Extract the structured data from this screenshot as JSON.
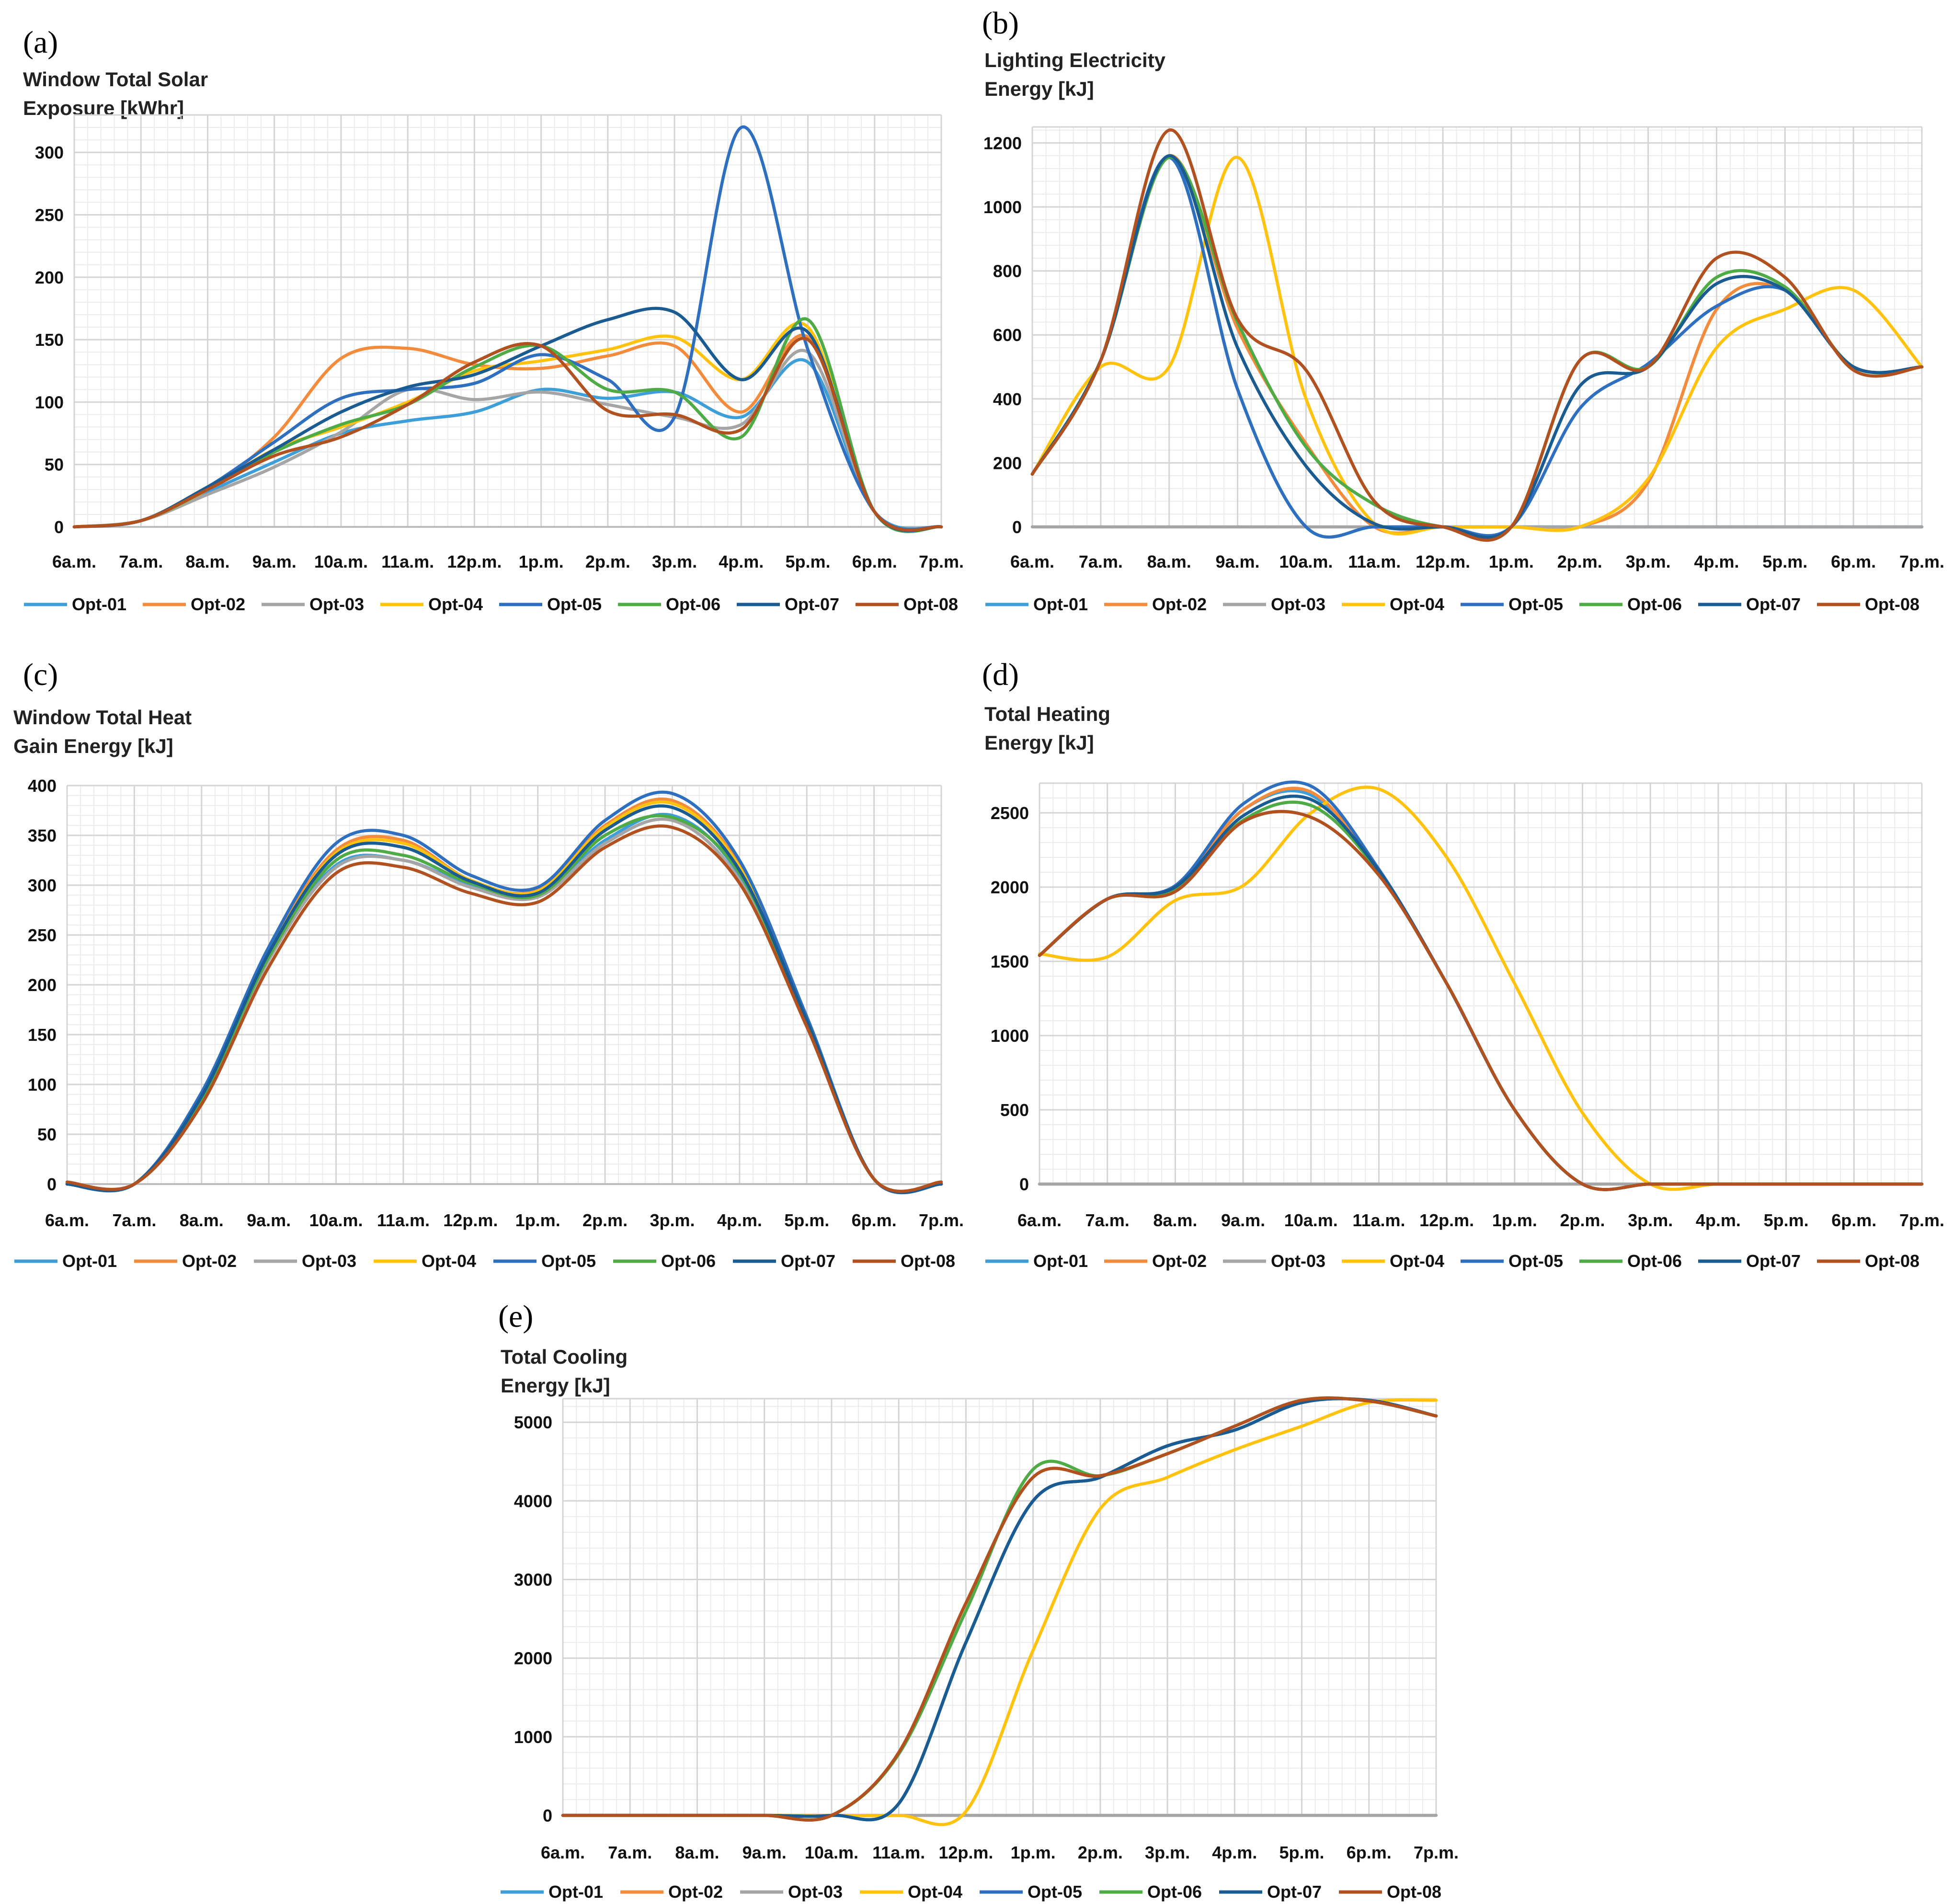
{
  "legend": {
    "colors": {
      "Opt-01": "#3d9ed8",
      "Opt-02": "#f28b3c",
      "Opt-03": "#a5a5a5",
      "Opt-04": "#ffc20e",
      "Opt-05": "#2e6fc0",
      "Opt-06": "#4eab45",
      "Opt-07": "#1a5c91",
      "Opt-08": "#b0511f"
    }
  },
  "chart_data": [
    {
      "id": "a",
      "type": "line",
      "panel_label": "(a)",
      "title_lines": [
        "Window Total Solar",
        "Exposure [kWhr]"
      ],
      "xlabel": "",
      "ylabel": "",
      "categories": [
        "6a.m.",
        "7a.m.",
        "8a.m.",
        "9a.m.",
        "10a.m.",
        "11a.m.",
        "12p.m.",
        "1p.m.",
        "2p.m.",
        "3p.m.",
        "4p.m.",
        "5p.m.",
        "6p.m.",
        "7p.m."
      ],
      "ylim": [
        0,
        330
      ],
      "yticks": [
        0,
        50,
        100,
        150,
        200,
        250,
        300
      ],
      "grid": true,
      "legend_position": "bottom",
      "series": [
        {
          "name": "Opt-01",
          "values": [
            0,
            5,
            28,
            52,
            75,
            85,
            92,
            110,
            103,
            108,
            88,
            132,
            12,
            0
          ]
        },
        {
          "name": "Opt-02",
          "values": [
            0,
            5,
            30,
            72,
            135,
            143,
            130,
            127,
            137,
            145,
            92,
            152,
            12,
            0
          ]
        },
        {
          "name": "Opt-03",
          "values": [
            0,
            5,
            26,
            48,
            76,
            110,
            102,
            108,
            98,
            88,
            82,
            140,
            12,
            0
          ]
        },
        {
          "name": "Opt-04",
          "values": [
            0,
            5,
            30,
            62,
            80,
            100,
            125,
            133,
            142,
            152,
            118,
            160,
            12,
            0
          ]
        },
        {
          "name": "Opt-05",
          "values": [
            0,
            5,
            32,
            68,
            103,
            110,
            115,
            138,
            118,
            88,
            320,
            142,
            12,
            0
          ]
        },
        {
          "name": "Opt-06",
          "values": [
            0,
            5,
            30,
            60,
            82,
            98,
            128,
            145,
            110,
            108,
            72,
            166,
            12,
            0
          ]
        },
        {
          "name": "Opt-07",
          "values": [
            0,
            5,
            32,
            62,
            92,
            112,
            122,
            145,
            166,
            172,
            118,
            156,
            12,
            0
          ]
        },
        {
          "name": "Opt-08",
          "values": [
            0,
            5,
            30,
            57,
            72,
            98,
            132,
            145,
            93,
            90,
            78,
            150,
            12,
            0
          ]
        }
      ]
    },
    {
      "id": "b",
      "type": "line",
      "panel_label": "(b)",
      "title_lines": [
        "Lighting Electricity",
        "Energy [kJ]"
      ],
      "xlabel": "",
      "ylabel": "",
      "categories": [
        "6a.m.",
        "7a.m.",
        "8a.m.",
        "9a.m.",
        "10a.m.",
        "11a.m.",
        "12p.m.",
        "1p.m.",
        "2p.m.",
        "3p.m.",
        "4p.m.",
        "5p.m.",
        "6p.m.",
        "7p.m."
      ],
      "ylim": [
        0,
        1250
      ],
      "yticks": [
        0,
        200,
        400,
        600,
        800,
        1000,
        1200
      ],
      "grid": true,
      "legend_position": "bottom",
      "series": [
        {
          "name": "Opt-01",
          "values": [
            165,
            520,
            1155,
            430,
            0,
            0,
            0,
            0,
            0,
            0,
            0,
            0,
            0,
            0
          ]
        },
        {
          "name": "Opt-02",
          "values": [
            165,
            520,
            1160,
            620,
            260,
            0,
            0,
            0,
            0,
            140,
            680,
            740,
            500,
            500
          ]
        },
        {
          "name": "Opt-03",
          "values": [
            0,
            0,
            0,
            0,
            0,
            0,
            0,
            0,
            0,
            0,
            0,
            0,
            0,
            0
          ]
        },
        {
          "name": "Opt-04",
          "values": [
            165,
            500,
            500,
            1155,
            400,
            10,
            0,
            0,
            0,
            150,
            560,
            680,
            740,
            500
          ]
        },
        {
          "name": "Opt-05",
          "values": [
            165,
            520,
            1155,
            430,
            0,
            0,
            0,
            0,
            370,
            510,
            690,
            740,
            500,
            500
          ]
        },
        {
          "name": "Opt-06",
          "values": [
            165,
            520,
            1155,
            640,
            250,
            70,
            0,
            0,
            520,
            500,
            780,
            750,
            500,
            500
          ]
        },
        {
          "name": "Opt-07",
          "values": [
            165,
            520,
            1160,
            560,
            190,
            10,
            0,
            0,
            440,
            500,
            760,
            740,
            500,
            500
          ]
        },
        {
          "name": "Opt-08",
          "values": [
            165,
            520,
            1240,
            650,
            490,
            80,
            0,
            0,
            520,
            500,
            840,
            780,
            490,
            500
          ]
        }
      ]
    },
    {
      "id": "c",
      "type": "line",
      "panel_label": "(c)",
      "title_lines": [
        "Window Total Heat",
        "Gain Energy [kJ]"
      ],
      "xlabel": "",
      "ylabel": "",
      "categories": [
        "6a.m.",
        "7a.m.",
        "8a.m.",
        "9a.m.",
        "10a.m.",
        "11a.m.",
        "12p.m.",
        "1p.m.",
        "2p.m.",
        "3p.m.",
        "4p.m.",
        "5p.m.",
        "6p.m.",
        "7p.m."
      ],
      "ylim": [
        0,
        400
      ],
      "yticks": [
        0,
        50,
        100,
        150,
        200,
        250,
        300,
        350,
        400
      ],
      "grid": true,
      "legend_position": "bottom",
      "series": [
        {
          "name": "Opt-01",
          "values": [
            0,
            0,
            85,
            225,
            320,
            325,
            300,
            290,
            345,
            370,
            310,
            160,
            5,
            0
          ]
        },
        {
          "name": "Opt-02",
          "values": [
            0,
            0,
            90,
            235,
            335,
            345,
            305,
            295,
            360,
            385,
            320,
            165,
            5,
            0
          ]
        },
        {
          "name": "Opt-03",
          "values": [
            0,
            0,
            85,
            225,
            318,
            325,
            298,
            288,
            342,
            365,
            305,
            160,
            5,
            0
          ]
        },
        {
          "name": "Opt-04",
          "values": [
            0,
            0,
            90,
            232,
            332,
            342,
            305,
            294,
            358,
            382,
            318,
            165,
            5,
            0
          ]
        },
        {
          "name": "Opt-05",
          "values": [
            0,
            0,
            92,
            238,
            342,
            350,
            310,
            298,
            365,
            392,
            325,
            168,
            5,
            0
          ]
        },
        {
          "name": "Opt-06",
          "values": [
            0,
            0,
            86,
            228,
            325,
            330,
            302,
            290,
            350,
            368,
            312,
            162,
            5,
            0
          ]
        },
        {
          "name": "Opt-07",
          "values": [
            0,
            0,
            88,
            232,
            330,
            338,
            304,
            292,
            355,
            378,
            315,
            164,
            5,
            0
          ]
        },
        {
          "name": "Opt-08",
          "values": [
            2,
            0,
            80,
            218,
            312,
            318,
            292,
            283,
            338,
            358,
            302,
            158,
            5,
            2
          ]
        }
      ]
    },
    {
      "id": "d",
      "type": "line",
      "panel_label": "(d)",
      "title_lines": [
        "Total Heating",
        "Energy [kJ]"
      ],
      "xlabel": "",
      "ylabel": "",
      "categories": [
        "6a.m.",
        "7a.m.",
        "8a.m.",
        "9a.m.",
        "10a.m.",
        "11a.m.",
        "12p.m.",
        "1p.m.",
        "2p.m.",
        "3p.m.",
        "4p.m.",
        "5p.m.",
        "6p.m.",
        "7p.m."
      ],
      "ylim": [
        0,
        2700
      ],
      "yticks": [
        0,
        500,
        1000,
        1500,
        2000,
        2500
      ],
      "grid": true,
      "legend_position": "bottom",
      "series": [
        {
          "name": "Opt-01",
          "values": [
            1540,
            1920,
            2000,
            2520,
            2620,
            2100,
            1350,
            500,
            0,
            0,
            0,
            0,
            0,
            0
          ]
        },
        {
          "name": "Opt-02",
          "values": [
            1540,
            1920,
            2000,
            2520,
            2640,
            2100,
            1350,
            500,
            0,
            0,
            0,
            0,
            0,
            0
          ]
        },
        {
          "name": "Opt-03",
          "values": [
            0,
            0,
            0,
            0,
            0,
            0,
            0,
            0,
            0,
            0,
            0,
            0,
            0,
            0
          ]
        },
        {
          "name": "Opt-04",
          "values": [
            1550,
            1530,
            1910,
            2010,
            2500,
            2660,
            2200,
            1350,
            480,
            0,
            0,
            0,
            0,
            0
          ]
        },
        {
          "name": "Opt-05",
          "values": [
            1540,
            1920,
            2010,
            2560,
            2680,
            2120,
            1350,
            500,
            0,
            0,
            0,
            0,
            0,
            0
          ]
        },
        {
          "name": "Opt-06",
          "values": [
            1540,
            1920,
            1980,
            2450,
            2550,
            2100,
            1350,
            500,
            0,
            0,
            0,
            0,
            0,
            0
          ]
        },
        {
          "name": "Opt-07",
          "values": [
            1540,
            1920,
            2000,
            2480,
            2590,
            2110,
            1350,
            500,
            0,
            0,
            0,
            0,
            0,
            0
          ]
        },
        {
          "name": "Opt-08",
          "values": [
            1540,
            1920,
            1970,
            2440,
            2470,
            2080,
            1350,
            500,
            0,
            0,
            0,
            0,
            0,
            0
          ]
        }
      ]
    },
    {
      "id": "e",
      "type": "line",
      "panel_label": "(e)",
      "title_lines": [
        "Total Cooling",
        "Energy [kJ]"
      ],
      "xlabel": "",
      "ylabel": "",
      "categories": [
        "6a.m.",
        "7a.m.",
        "8a.m.",
        "9a.m.",
        "10a.m.",
        "11a.m.",
        "12p.m.",
        "1p.m.",
        "2p.m.",
        "3p.m.",
        "4p.m.",
        "5p.m.",
        "6p.m.",
        "7p.m."
      ],
      "ylim": [
        0,
        5300
      ],
      "yticks": [
        0,
        1000,
        2000,
        3000,
        4000,
        5000
      ],
      "grid": true,
      "legend_position": "bottom",
      "series": [
        {
          "name": "Opt-01",
          "values": [
            0,
            0,
            0,
            0,
            0,
            150,
            2200,
            4000,
            4300,
            4700,
            4900,
            5250,
            5280,
            5080
          ]
        },
        {
          "name": "Opt-02",
          "values": [
            0,
            0,
            0,
            0,
            0,
            800,
            2700,
            4300,
            4320,
            4600,
            4950,
            5280,
            5270,
            5080
          ]
        },
        {
          "name": "Opt-03",
          "values": [
            0,
            0,
            0,
            0,
            0,
            0,
            0,
            0,
            0,
            0,
            0,
            0,
            0,
            0
          ]
        },
        {
          "name": "Opt-04",
          "values": [
            0,
            0,
            0,
            0,
            0,
            0,
            50,
            2100,
            3900,
            4300,
            4650,
            4950,
            5250,
            5280
          ]
        },
        {
          "name": "Opt-05",
          "values": [
            0,
            0,
            0,
            0,
            0,
            150,
            2200,
            4000,
            4300,
            4700,
            4900,
            5250,
            5280,
            5080
          ]
        },
        {
          "name": "Opt-06",
          "values": [
            0,
            0,
            0,
            0,
            0,
            780,
            2600,
            4400,
            4320,
            4600,
            4950,
            5280,
            5270,
            5080
          ]
        },
        {
          "name": "Opt-07",
          "values": [
            0,
            0,
            0,
            0,
            0,
            150,
            2200,
            4000,
            4300,
            4700,
            4900,
            5250,
            5280,
            5080
          ]
        },
        {
          "name": "Opt-08",
          "values": [
            0,
            0,
            0,
            0,
            0,
            800,
            2700,
            4300,
            4320,
            4600,
            4950,
            5280,
            5270,
            5080
          ]
        }
      ]
    }
  ]
}
